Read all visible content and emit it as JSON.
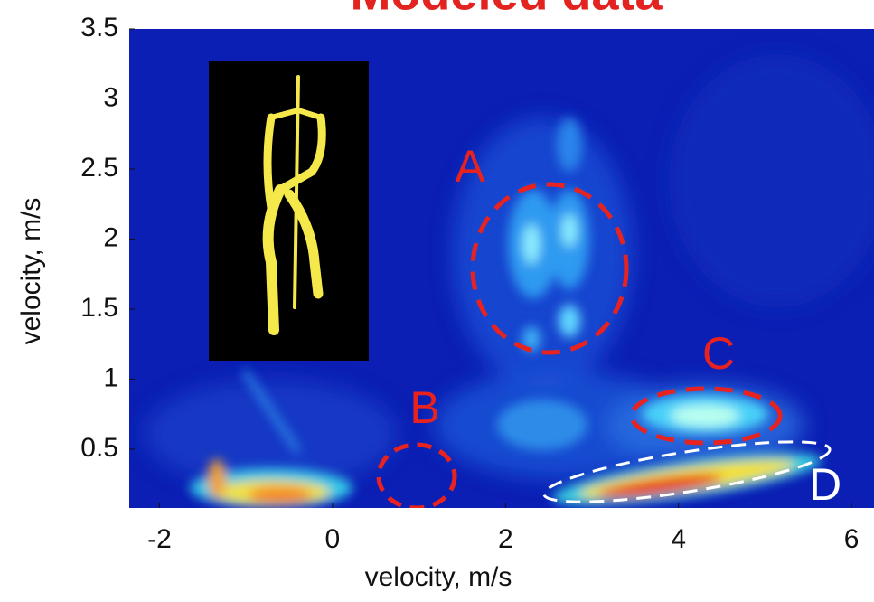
{
  "chart_data": {
    "type": "heatmap",
    "title": "Modeled data",
    "title_color": "#e3231f",
    "x_label": "velocity, m/s",
    "y_label": "velocity, m/s",
    "xlim": [
      -2.35,
      6.26
    ],
    "ylim": [
      0.08,
      3.5
    ],
    "xticks": [
      -2,
      0,
      2,
      4,
      6
    ],
    "yticks": [
      0.5,
      1,
      1.5,
      2,
      2.5,
      3,
      3.5
    ],
    "annotations": [
      {
        "text": "A",
        "color": "#e8231f"
      },
      {
        "text": "B",
        "color": "#e8231f"
      },
      {
        "text": "C",
        "color": "#e8231f"
      },
      {
        "text": "D",
        "color": "#ffffff"
      }
    ]
  }
}
